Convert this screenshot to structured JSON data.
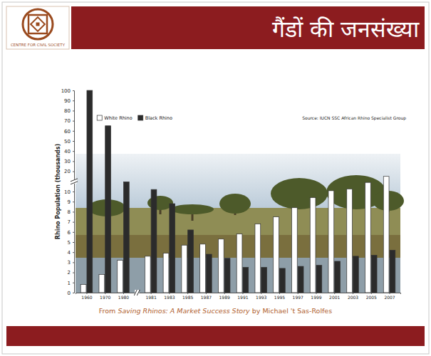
{
  "header": {
    "title": "गैंडों की जनसंख्या",
    "logo_text": "CENTRE FOR CIVIL SOCIETY"
  },
  "chart_data": {
    "type": "bar",
    "y_label": "Rhino Population (thousands)",
    "annotations": [
      "Source: IUCN SSC African Rhino Specialist Group"
    ],
    "categories": [
      "1960",
      "1970",
      "1980",
      "1981",
      "1983",
      "1985",
      "1987",
      "1989",
      "1991",
      "1993",
      "1995",
      "1997",
      "1999",
      "2001",
      "2003",
      "2005",
      "2007"
    ],
    "series": [
      {
        "name": "White Rhino",
        "color": "#ffffff",
        "values": [
          0.8,
          1.8,
          3.2,
          3.6,
          3.9,
          4.7,
          4.8,
          5.3,
          5.8,
          6.8,
          7.5,
          8.4,
          9.4,
          10.4,
          11.3,
          14.5,
          17.5
        ]
      },
      {
        "name": "Black Rhino",
        "color": "#2b2b2b",
        "values": [
          100,
          65,
          14.8,
          11,
          8.8,
          6.2,
          3.8,
          3.4,
          2.5,
          2.5,
          2.4,
          2.6,
          2.7,
          3.1,
          3.6,
          3.7,
          4.2
        ]
      }
    ],
    "ylim": [
      0,
      100
    ],
    "yticks": [
      0,
      1,
      2,
      3,
      4,
      5,
      6,
      7,
      8,
      9,
      10,
      20,
      30,
      40,
      50,
      60,
      70,
      80,
      90,
      100
    ],
    "legend": "upper left",
    "grid": false
  },
  "caption": {
    "prefix": "From ",
    "title": "Saving Rhinos: A Market Success Story",
    "suffix": " by Michael 't Sas-Rolfes"
  }
}
